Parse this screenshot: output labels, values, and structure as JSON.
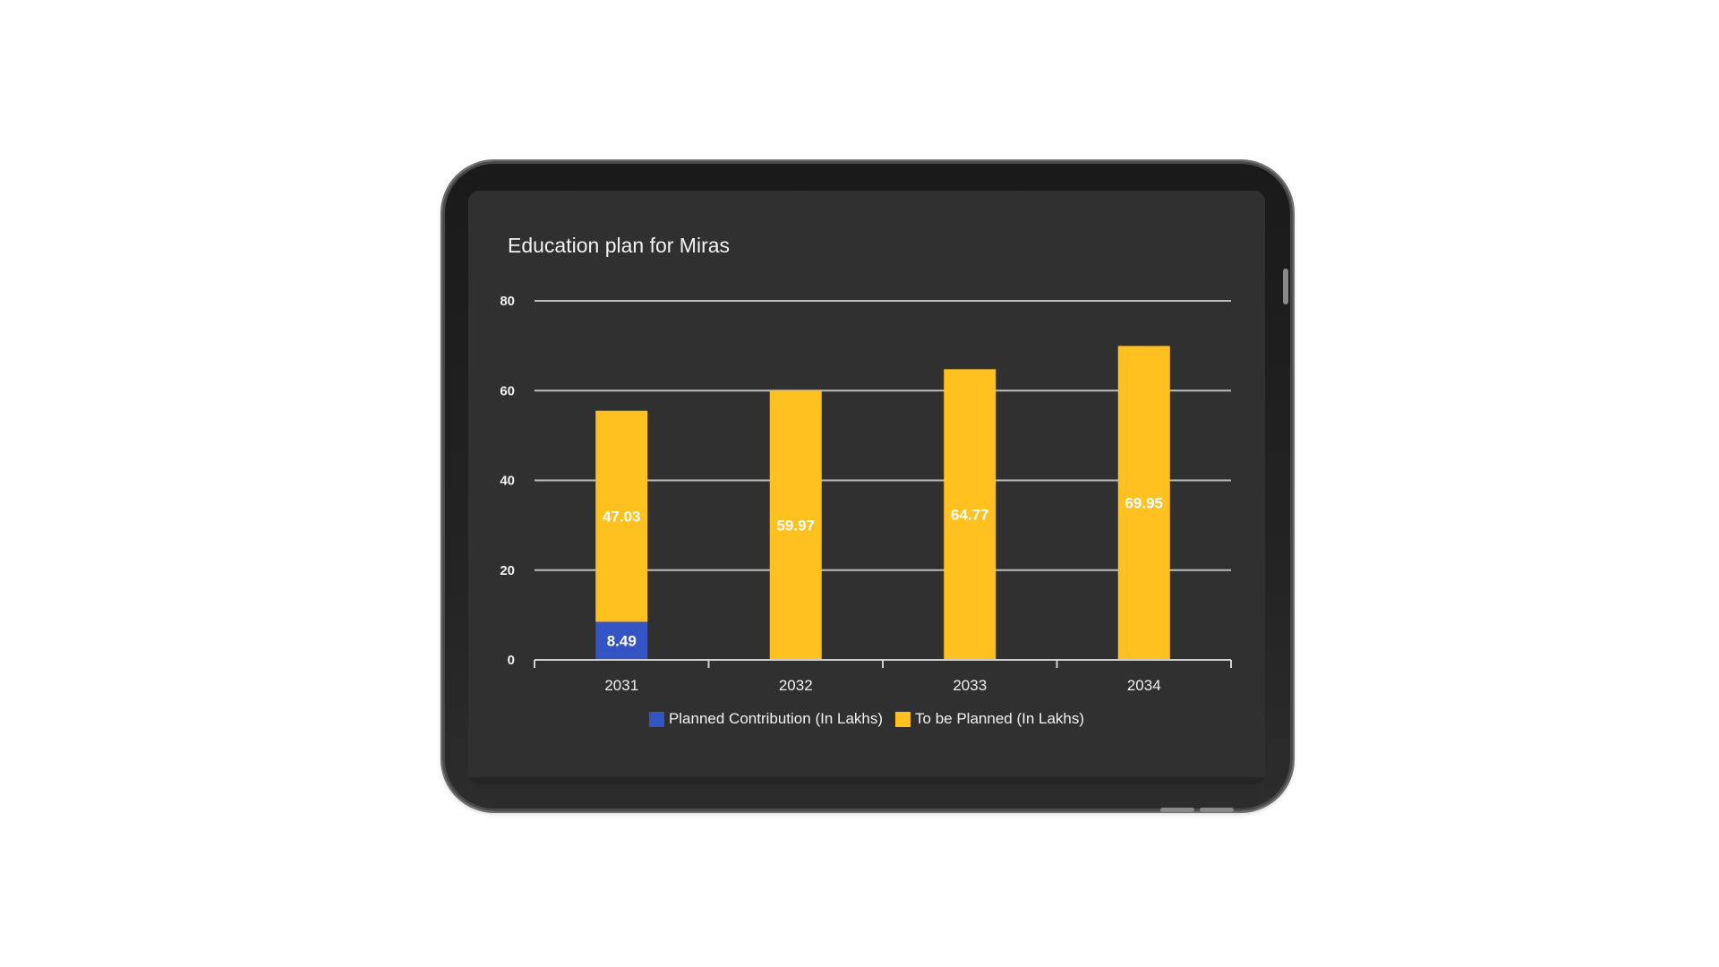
{
  "chart_data": {
    "type": "bar",
    "stacked": true,
    "title": "Education plan for Miras",
    "categories": [
      "2031",
      "2032",
      "2033",
      "2034"
    ],
    "series": [
      {
        "name": "Planned Contribution (In Lakhs)",
        "color": "#3454c4",
        "values": [
          8.49,
          0,
          0,
          0
        ],
        "labels": [
          "8.49",
          "",
          "",
          ""
        ]
      },
      {
        "name": "To be Planned (In Lakhs)",
        "color": "#ffc120",
        "values": [
          47.03,
          59.97,
          64.77,
          69.95
        ],
        "labels": [
          "47.03",
          "59.97",
          "64.77",
          "69.95"
        ]
      }
    ],
    "ylim": [
      0,
      80
    ],
    "yticks": [
      "0",
      "20",
      "40",
      "60",
      "80"
    ],
    "grid": true,
    "legend": "bottom"
  },
  "colors": {
    "screen_background": "#303030",
    "gridline": "#bdbdbd",
    "text": "#f2f2f2"
  }
}
